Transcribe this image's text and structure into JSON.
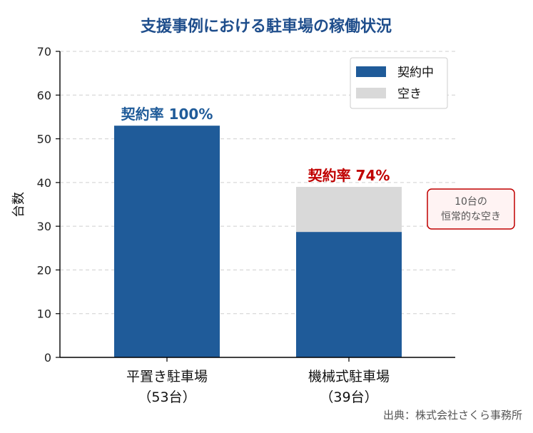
{
  "chart_data": {
    "type": "bar",
    "title": "支援事例における駐車場の稼働状況",
    "ylabel": "台数",
    "ylim": [
      0,
      70
    ],
    "yticks": [
      0,
      10,
      20,
      30,
      40,
      50,
      60,
      70
    ],
    "grid": true,
    "legend_position": "top-right",
    "categories": [
      {
        "line1": "平置き駐車場",
        "line2": "（53台）"
      },
      {
        "line1": "機械式駐車場",
        "line2": "（39台）"
      }
    ],
    "series": [
      {
        "name": "契約中",
        "values": [
          53,
          28.7
        ],
        "color": "#1f5b99"
      },
      {
        "name": "空き",
        "values": [
          0,
          10.3
        ],
        "color": "#d9d9d9"
      }
    ],
    "bar_labels": [
      {
        "text": "契約率 100%",
        "color": "#1f5b99"
      },
      {
        "text": "契約率 74%",
        "color": "#c00000"
      }
    ],
    "annotation": {
      "line1": "10台の",
      "line2": "恒常的な空き",
      "border_color": "#c00000",
      "fill": "#fff3f3"
    },
    "source": "出典：株式会社さくら事務所",
    "title_color": "#1f4e8c"
  }
}
